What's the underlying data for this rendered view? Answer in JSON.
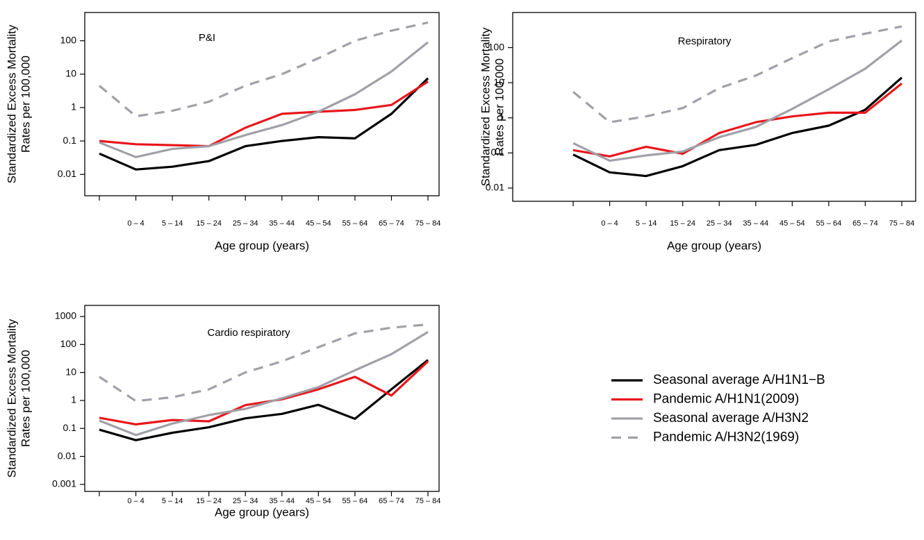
{
  "chart_data": [
    {
      "type": "line",
      "title": "P&I",
      "ylabel": [
        "Standardized Excess Mortality",
        "Rates per 100,000"
      ],
      "xlabel": "Age group (years)",
      "log_scale": true,
      "legend": "right",
      "categories": [
        null,
        "0 – 4",
        "5 – 14",
        "15 – 24",
        "25 – 34",
        "35 – 44",
        "45 – 54",
        "55 – 64",
        "65 – 74",
        "75 – 84"
      ],
      "ylim": [
        0.0023,
        700
      ],
      "yticks": [
        0.01,
        0.1,
        1,
        10,
        100
      ],
      "series": [
        {
          "name": "Seasonal average A/H1N1−B",
          "color": "#000000",
          "dashed": false,
          "values": [
            0.042,
            0.014,
            0.017,
            0.025,
            0.07,
            0.1,
            0.13,
            0.12,
            0.65,
            7.5
          ]
        },
        {
          "name": "Pandemic A/H1N1(2009)",
          "color": "#e8161b",
          "dashed": false,
          "values": [
            0.1,
            0.08,
            0.075,
            0.07,
            0.25,
            0.65,
            0.75,
            0.85,
            1.2,
            6
          ]
        },
        {
          "name": "Seasonal average A/H3N2",
          "color": "#a0a0a8",
          "dashed": false,
          "values": [
            0.09,
            0.033,
            0.058,
            0.07,
            0.15,
            0.3,
            0.75,
            2.5,
            12,
            90
          ]
        },
        {
          "name": "Pandemic A/H3N2(1969)",
          "color": "#a0a0a8",
          "dashed": true,
          "values": [
            4.5,
            0.55,
            0.8,
            1.5,
            4.5,
            10,
            30,
            100,
            200,
            350
          ]
        }
      ]
    },
    {
      "type": "line",
      "title": "Respiratory",
      "ylabel": [
        "Standardized Excess Mortality",
        "Rates per 100,000"
      ],
      "xlabel": "Age group (years)",
      "log_scale": true,
      "categories": [
        null,
        "0 – 4",
        "5 – 14",
        "15 – 24",
        "25 – 34",
        "35 – 44",
        "45 – 54",
        "55 – 64",
        "65 – 74",
        "75 – 84"
      ],
      "ylim": [
        0.0042,
        1000
      ],
      "yticks": [
        0.01,
        0.1,
        1,
        10,
        100
      ],
      "series": [
        {
          "color": "#000000",
          "dashed": false,
          "values": [
            0.09,
            0.028,
            0.022,
            0.042,
            0.12,
            0.17,
            0.37,
            0.6,
            1.7,
            14
          ]
        },
        {
          "color": "#e8161b",
          "dashed": false,
          "values": [
            0.12,
            0.08,
            0.15,
            0.095,
            0.37,
            0.75,
            1.1,
            1.4,
            1.4,
            9.5
          ]
        },
        {
          "color": "#a0a0a8",
          "dashed": false,
          "values": [
            0.19,
            0.06,
            0.085,
            0.11,
            0.28,
            0.55,
            1.8,
            6.5,
            25,
            160
          ]
        },
        {
          "color": "#a0a0a8",
          "dashed": true,
          "values": [
            5.5,
            0.75,
            1.1,
            1.9,
            7,
            16,
            50,
            150,
            250,
            400
          ]
        }
      ]
    },
    {
      "type": "line",
      "title": "Cardio respiratory",
      "ylabel": [
        "Standardized Excess Mortality",
        "Rates per 100,000"
      ],
      "xlabel": "Age group (years)",
      "log_scale": true,
      "categories": [
        null,
        "0 – 4",
        "5 – 14",
        "15 – 24",
        "25 – 34",
        "35 – 44",
        "45 – 54",
        "55 – 64",
        "65 – 74",
        "75 – 84"
      ],
      "ylim": [
        0.00056,
        2500
      ],
      "yticks": [
        0.001,
        0.01,
        0.1,
        1,
        10,
        100,
        1000
      ],
      "series": [
        {
          "color": "#000000",
          "dashed": false,
          "values": [
            0.09,
            0.038,
            0.07,
            0.11,
            0.23,
            0.33,
            0.7,
            0.22,
            2.5,
            28
          ]
        },
        {
          "color": "#e8161b",
          "dashed": false,
          "values": [
            0.24,
            0.14,
            0.2,
            0.18,
            0.68,
            1.1,
            2.5,
            7,
            1.5,
            25
          ]
        },
        {
          "color": "#a0a0a8",
          "dashed": false,
          "values": [
            0.19,
            0.058,
            0.15,
            0.3,
            0.5,
            1.2,
            3,
            12,
            45,
            280
          ]
        },
        {
          "color": "#a0a0a8",
          "dashed": true,
          "values": [
            7,
            0.95,
            1.3,
            2.5,
            10,
            25,
            80,
            250,
            400,
            520
          ]
        }
      ]
    }
  ]
}
